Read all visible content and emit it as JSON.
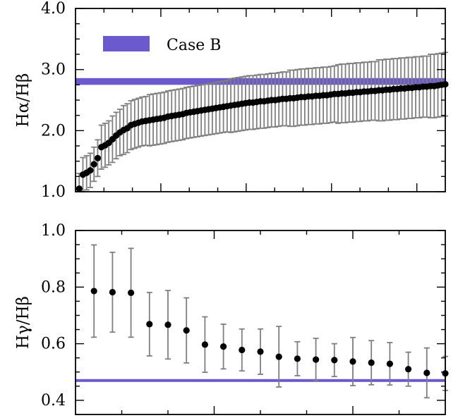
{
  "chart_data": [
    {
      "type": "scatter",
      "ylabel": "Hα/Hβ",
      "ylim": [
        1.0,
        4.0
      ],
      "yticks": [
        "1.0",
        "2.0",
        "3.0",
        "4.0"
      ],
      "xlim": [
        0,
        100
      ],
      "x_tick_labels": false,
      "reference_band": {
        "label": "Case B",
        "y_range": [
          2.75,
          2.86
        ],
        "color": "#6a5acd"
      },
      "legend": {
        "position": "top-left",
        "entries": [
          "Case B"
        ]
      },
      "series": [
        {
          "marker": "filled-circle",
          "color": "#000000",
          "errorbar_color": "#7f7f7f",
          "x": [
            1,
            2,
            3,
            4,
            5,
            6,
            7,
            8,
            9,
            10,
            11,
            12,
            13,
            14,
            15,
            16,
            17,
            18,
            19,
            20,
            21,
            22,
            23,
            24,
            25,
            26,
            27,
            28,
            29,
            30,
            31,
            32,
            33,
            34,
            35,
            36,
            37,
            38,
            39,
            40,
            41,
            42,
            43,
            44,
            45,
            46,
            47,
            48,
            49,
            50,
            51,
            52,
            53,
            54,
            55,
            56,
            57,
            58,
            59,
            60,
            61,
            62,
            63,
            64,
            65,
            66,
            67,
            68,
            69,
            70,
            71,
            72,
            73,
            74,
            75,
            76,
            77,
            78,
            79,
            80,
            81,
            82,
            83,
            84,
            85,
            86,
            87,
            88,
            89,
            90,
            91,
            92,
            93,
            94,
            95,
            96,
            97,
            98,
            99,
            100
          ],
          "y": [
            1.05,
            1.28,
            1.31,
            1.35,
            1.45,
            1.55,
            1.73,
            1.76,
            1.8,
            1.86,
            1.92,
            1.97,
            2.01,
            2.04,
            2.09,
            2.11,
            2.13,
            2.15,
            2.16,
            2.17,
            2.18,
            2.19,
            2.2,
            2.21,
            2.23,
            2.24,
            2.25,
            2.26,
            2.27,
            2.29,
            2.3,
            2.31,
            2.32,
            2.33,
            2.34,
            2.35,
            2.36,
            2.37,
            2.38,
            2.39,
            2.4,
            2.41,
            2.42,
            2.43,
            2.44,
            2.45,
            2.46,
            2.46,
            2.47,
            2.48,
            2.48,
            2.49,
            2.5,
            2.5,
            2.51,
            2.52,
            2.52,
            2.53,
            2.53,
            2.54,
            2.55,
            2.55,
            2.56,
            2.56,
            2.57,
            2.57,
            2.58,
            2.58,
            2.59,
            2.6,
            2.6,
            2.61,
            2.61,
            2.62,
            2.62,
            2.63,
            2.63,
            2.64,
            2.64,
            2.65,
            2.65,
            2.66,
            2.66,
            2.67,
            2.67,
            2.68,
            2.68,
            2.69,
            2.69,
            2.7,
            2.7,
            2.71,
            2.71,
            2.72,
            2.72,
            2.73,
            2.73,
            2.74,
            2.75,
            2.76
          ],
          "yerr": [
            0.25,
            0.28,
            0.28,
            0.28,
            0.28,
            0.3,
            0.36,
            0.36,
            0.36,
            0.38,
            0.38,
            0.38,
            0.4,
            0.4,
            0.4,
            0.4,
            0.4,
            0.4,
            0.4,
            0.42,
            0.42,
            0.42,
            0.42,
            0.42,
            0.42,
            0.42,
            0.42,
            0.42,
            0.42,
            0.42,
            0.42,
            0.42,
            0.42,
            0.42,
            0.42,
            0.42,
            0.42,
            0.42,
            0.42,
            0.42,
            0.42,
            0.44,
            0.44,
            0.44,
            0.44,
            0.44,
            0.44,
            0.44,
            0.44,
            0.44,
            0.44,
            0.44,
            0.44,
            0.44,
            0.44,
            0.44,
            0.44,
            0.46,
            0.46,
            0.46,
            0.46,
            0.46,
            0.46,
            0.46,
            0.46,
            0.46,
            0.46,
            0.46,
            0.46,
            0.46,
            0.48,
            0.48,
            0.48,
            0.48,
            0.48,
            0.48,
            0.48,
            0.48,
            0.48,
            0.48,
            0.48,
            0.5,
            0.5,
            0.5,
            0.5,
            0.5,
            0.5,
            0.5,
            0.5,
            0.5,
            0.5,
            0.5,
            0.5,
            0.5,
            0.5,
            0.52,
            0.52,
            0.52,
            0.52,
            0.52
          ]
        }
      ]
    },
    {
      "type": "scatter",
      "ylabel": "Hγ/Hβ",
      "ylim": [
        0.35,
        1.0
      ],
      "yticks": [
        "0.4",
        "0.6",
        "0.8",
        "1.0"
      ],
      "xlim": [
        0,
        20
      ],
      "x_tick_labels": false,
      "reference_band": {
        "y_range": [
          0.465,
          0.475
        ],
        "color": "#6a5acd"
      },
      "series": [
        {
          "marker": "filled-circle",
          "color": "#000000",
          "errorbar_color": "#7f7f7f",
          "x": [
            1,
            2,
            3,
            4,
            5,
            6,
            7,
            8,
            9,
            10,
            11,
            12,
            13,
            14,
            15,
            16,
            17,
            18,
            19,
            20
          ],
          "y": [
            0.786,
            0.782,
            0.78,
            0.669,
            0.667,
            0.647,
            0.597,
            0.59,
            0.578,
            0.572,
            0.554,
            0.547,
            0.544,
            0.542,
            0.537,
            0.533,
            0.529,
            0.51,
            0.497,
            0.495
          ],
          "yerr": [
            0.163,
            0.141,
            0.157,
            0.112,
            0.121,
            0.115,
            0.098,
            0.079,
            0.074,
            0.08,
            0.107,
            0.06,
            0.075,
            0.058,
            0.085,
            0.078,
            0.075,
            0.06,
            0.088,
            0.06
          ]
        }
      ]
    }
  ]
}
